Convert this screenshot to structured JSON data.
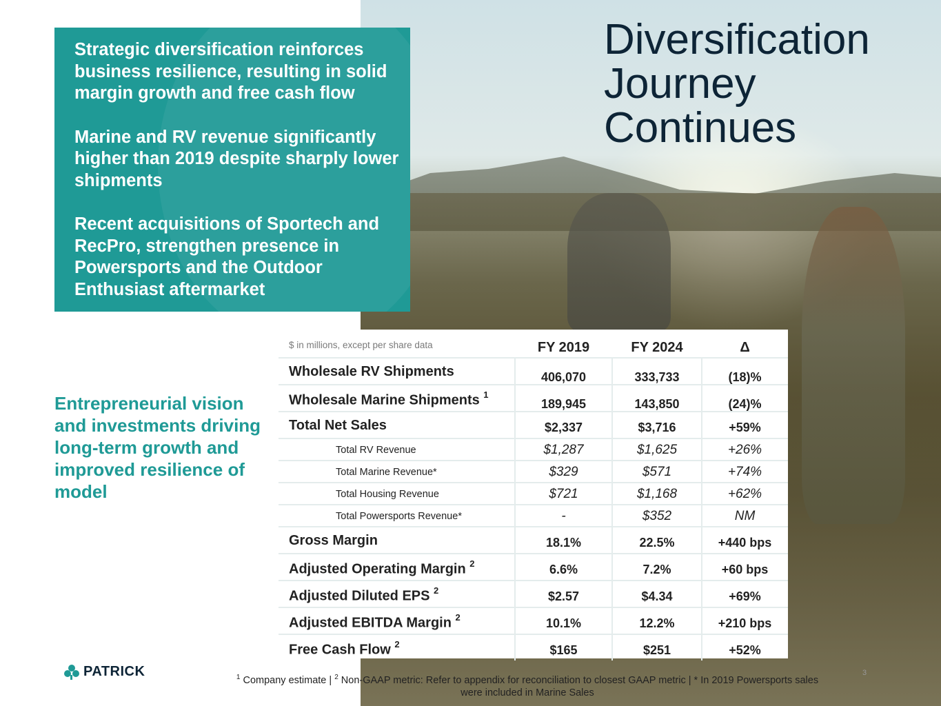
{
  "title_lines": [
    "Diversification",
    "Journey",
    "Continues"
  ],
  "callout": [
    "Strategic diversification reinforces business resilience, resulting in solid margin growth and free cash flow",
    "Marine and RV revenue significantly higher than 2019 despite sharply lower shipments",
    "Recent acquisitions of Sportech and RecPro, strengthen presence in Powersports and the Outdoor Enthusiast aftermarket"
  ],
  "tagline": "Entrepreneurial vision and investments driving long-term growth and improved resilience of model",
  "table": {
    "note": "$ in millions, except per share data",
    "columns": [
      "FY 2019",
      "FY 2024",
      "Δ"
    ],
    "rows": [
      {
        "label": "Wholesale RV Shipments",
        "sup": "",
        "values": [
          "406,070",
          "333,733",
          "(18)%"
        ],
        "style": "big"
      },
      {
        "label": "Wholesale Marine Shipments",
        "sup": "1",
        "values": [
          "189,945",
          "143,850",
          "(24)%"
        ],
        "style": "big"
      },
      {
        "label": "Total Net Sales",
        "sup": "",
        "values": [
          "$2,337",
          "$3,716",
          "+59%"
        ],
        "style": "big"
      },
      {
        "label": "Total RV Revenue",
        "sup": "",
        "values": [
          "$1,287",
          "$1,625",
          "+26%"
        ],
        "style": "sub"
      },
      {
        "label": "Total Marine Revenue*",
        "sup": "",
        "values": [
          "$329",
          "$571",
          "+74%"
        ],
        "style": "sub"
      },
      {
        "label": "Total Housing Revenue",
        "sup": "",
        "values": [
          "$721",
          "$1,168",
          "+62%"
        ],
        "style": "sub"
      },
      {
        "label": "Total Powersports Revenue*",
        "sup": "",
        "values": [
          "-",
          "$352",
          "NM"
        ],
        "style": "sub"
      },
      {
        "label": "Gross Margin",
        "sup": "",
        "values": [
          "18.1%",
          "22.5%",
          "+440 bps"
        ],
        "style": "big"
      },
      {
        "label": "Adjusted Operating Margin",
        "sup": "2",
        "values": [
          "6.6%",
          "7.2%",
          "+60 bps"
        ],
        "style": "big"
      },
      {
        "label": "Adjusted Diluted EPS",
        "sup": "2",
        "values": [
          "$2.57",
          "$4.34",
          "+69%"
        ],
        "style": "big"
      },
      {
        "label": "Adjusted EBITDA Margin",
        "sup": "2",
        "values": [
          "10.1%",
          "12.2%",
          "+210 bps"
        ],
        "style": "big"
      },
      {
        "label": "Free Cash Flow",
        "sup": "2",
        "values": [
          "$165",
          "$251",
          "+52%"
        ],
        "style": "big"
      }
    ]
  },
  "footer": {
    "logo_text": "PATRICK",
    "footnote_sup1": "1",
    "footnote_part1": " Company estimate | ",
    "footnote_sup2": "2",
    "footnote_part2": " Non-GAAP metric: Refer to appendix for reconciliation to closest GAAP metric | * In 2019 Powersports sales were included in Marine Sales",
    "page_number": "3"
  },
  "colors": {
    "teal": "#1f9a96",
    "navy": "#0d2436"
  }
}
